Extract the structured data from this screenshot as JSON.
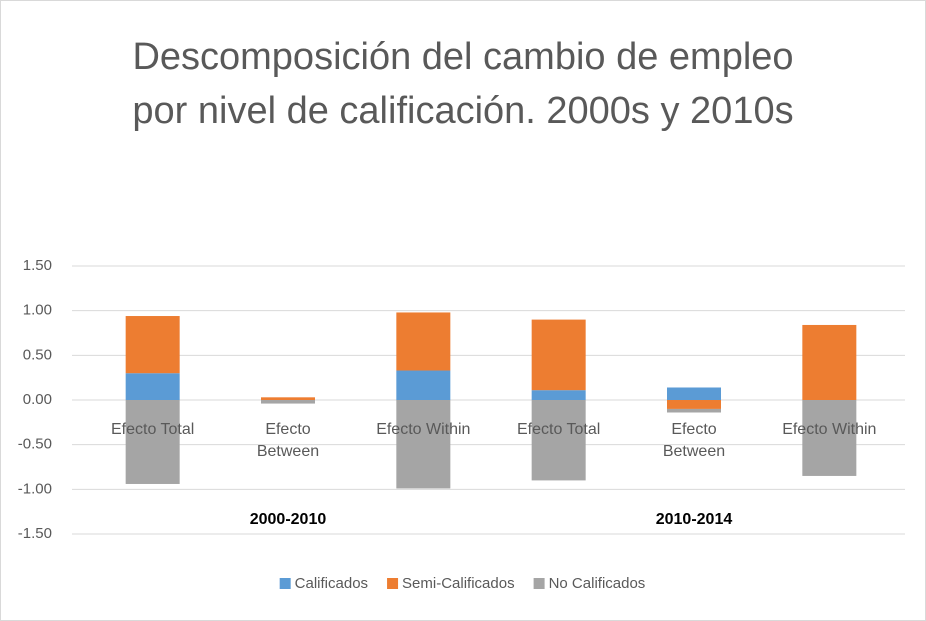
{
  "chart_data": {
    "type": "stacked_bar",
    "title": "Descomposición del cambio de empleo por nivel de calificación. 2000s y 2010s",
    "categories": [
      "Efecto Total",
      "Efecto Between",
      "Efecto Within",
      "Efecto Total",
      "Efecto Between",
      "Efecto Within"
    ],
    "group_labels": [
      "2000-2010",
      "2010-2014"
    ],
    "series": [
      {
        "name": "Calificados",
        "color": "#5b9bd5",
        "values": [
          0.3,
          0.0,
          0.33,
          0.11,
          0.14,
          0.0
        ]
      },
      {
        "name": "Semi-Calificados",
        "color": "#ed7d31",
        "values": [
          0.64,
          0.03,
          0.65,
          0.79,
          -0.1,
          0.84
        ]
      },
      {
        "name": "No Calificados",
        "color": "#a5a5a5",
        "values": [
          -0.94,
          -0.04,
          -0.99,
          -0.9,
          -0.04,
          -0.85
        ]
      }
    ],
    "ylim": [
      -1.5,
      1.5
    ],
    "yticks": [
      {
        "value": -1.5,
        "label": "-1.50"
      },
      {
        "value": -1.0,
        "label": "-1.00"
      },
      {
        "value": -0.5,
        "label": "-0.50"
      },
      {
        "value": 0,
        "label": "0.00"
      },
      {
        "value": 0.5,
        "label": "0.50"
      },
      {
        "value": 1.0,
        "label": "1.00"
      },
      {
        "value": 1.5,
        "label": "1.50"
      }
    ],
    "grid": true,
    "legend": "bottom"
  }
}
